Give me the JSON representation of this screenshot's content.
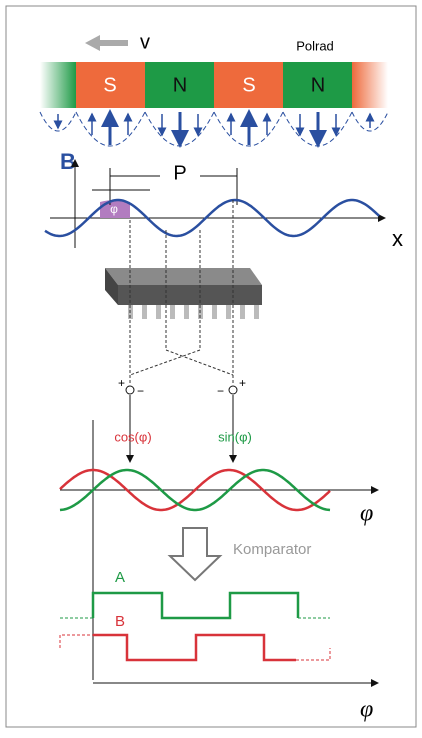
{
  "top": {
    "speed_label": "v",
    "wheel_label": "Polrad",
    "poles": [
      "S",
      "N",
      "S",
      "N"
    ]
  },
  "field": {
    "axis_label": "B",
    "period_label": "P",
    "phase_label": "φ",
    "position_label": "x"
  },
  "sensor": {
    "left_plus": "+",
    "left_minus": "−",
    "right_minus": "−",
    "right_plus": "+"
  },
  "signals": {
    "cos_label": "cos(φ)",
    "sin_label": "sin(φ)",
    "axis_label": "φ"
  },
  "comparator": {
    "label": "Komparator"
  },
  "outputs": {
    "a_label": "A",
    "b_label": "B",
    "axis_label": "φ"
  }
}
